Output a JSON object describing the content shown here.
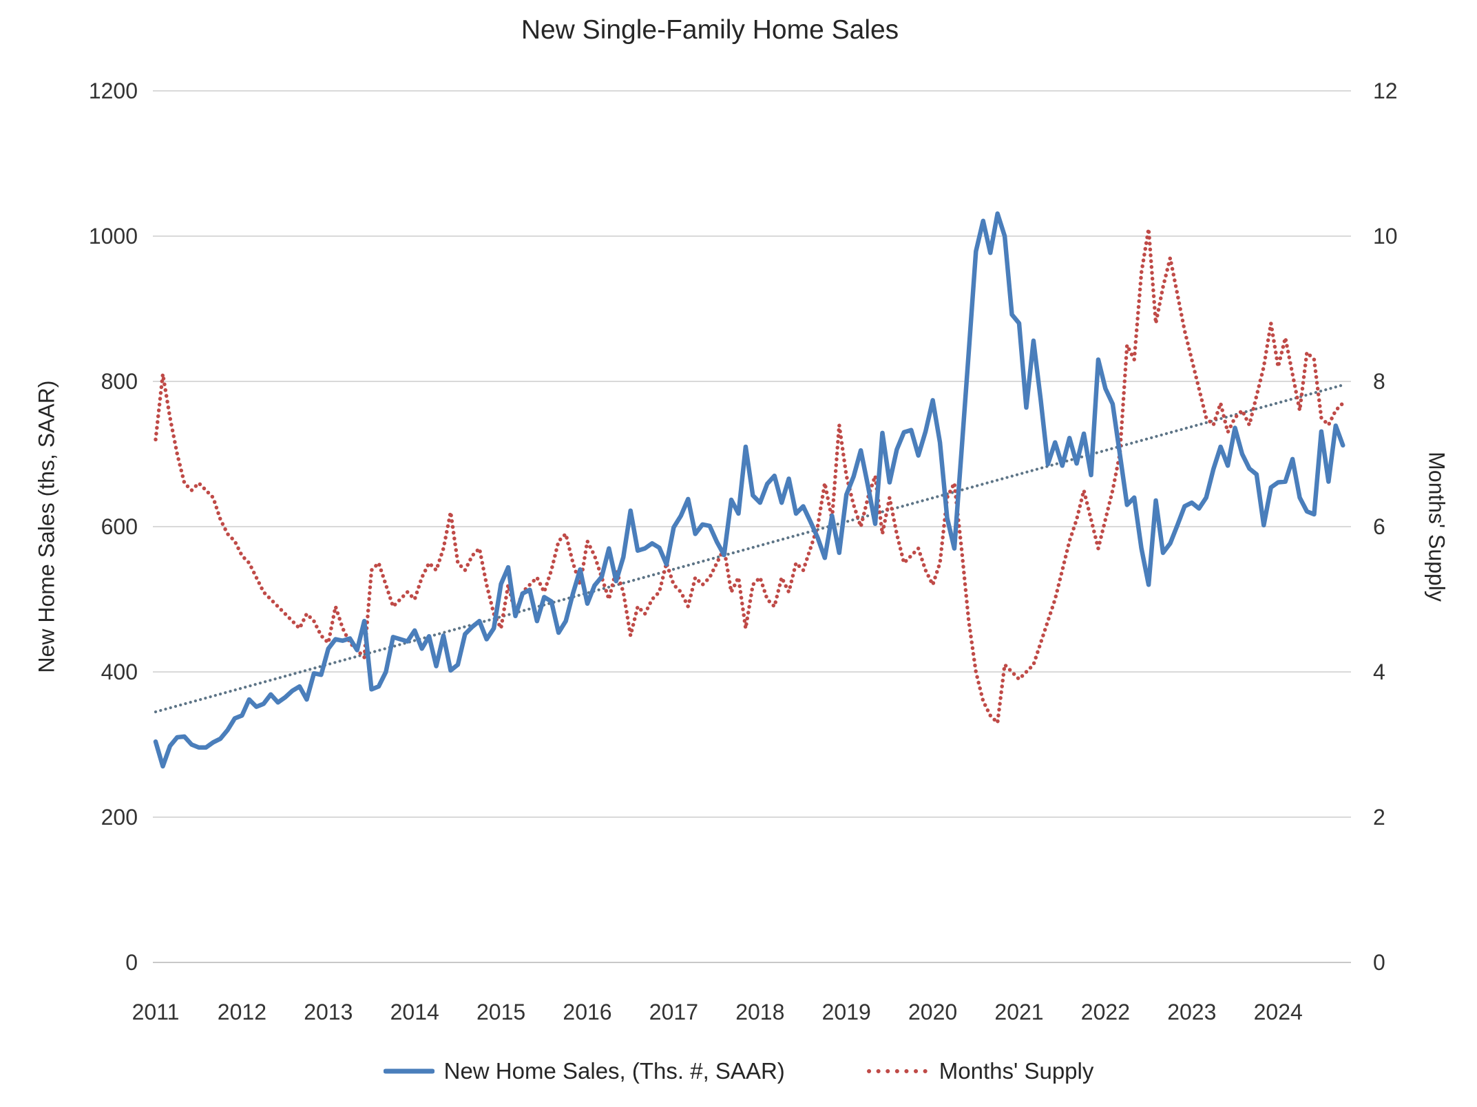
{
  "title": "New Single-Family Home Sales",
  "left_axis": {
    "title": "New Home Sales (ths, SAAR)",
    "ticks": [
      0,
      200,
      400,
      600,
      800,
      1000,
      1200
    ]
  },
  "right_axis": {
    "title": "Months' Supply",
    "ticks": [
      0,
      2,
      4,
      6,
      8,
      10,
      12
    ]
  },
  "x_axis": {
    "years": [
      "2011",
      "2012",
      "2013",
      "2014",
      "2015",
      "2016",
      "2017",
      "2018",
      "2019",
      "2020",
      "2021",
      "2022",
      "2023",
      "2024"
    ]
  },
  "legend": {
    "sales_label": "New Home Sales, (Ths. #, SAAR)",
    "supply_label": "Months' Supply"
  },
  "colors": {
    "sales_line": "#4a7ebb",
    "supply_dots": "#bf4a47",
    "trend_dots": "#5d7486",
    "gridline": "#d9d9d9",
    "axis_line": "#c8c8c8",
    "text": "#262626"
  },
  "chart_data": {
    "type": "line",
    "title": "New Single-Family Home Sales",
    "x_start": "2011-01",
    "x_end": "2024-10",
    "frequency": "monthly",
    "left_ylim": [
      0,
      1200
    ],
    "right_ylim": [
      0,
      12
    ],
    "gridlines": true,
    "legend_position": "bottom",
    "series": [
      {
        "name": "New Home Sales, (Ths. #, SAAR)",
        "axis": "left",
        "style": "solid",
        "color": "#4a7ebb",
        "values": [
          304,
          270,
          298,
          310,
          311,
          300,
          296,
          296,
          303,
          308,
          320,
          336,
          340,
          362,
          352,
          356,
          369,
          358,
          365,
          374,
          380,
          362,
          398,
          396,
          432,
          445,
          443,
          446,
          430,
          470,
          376,
          380,
          400,
          448,
          445,
          442,
          457,
          432,
          449,
          408,
          450,
          402,
          410,
          452,
          462,
          470,
          445,
          460,
          521,
          544,
          477,
          508,
          513,
          470,
          503,
          497,
          454,
          470,
          508,
          541,
          494,
          519,
          531,
          570,
          525,
          558,
          622,
          567,
          570,
          577,
          571,
          548,
          599,
          615,
          638,
          590,
          603,
          601,
          579,
          561,
          637,
          618,
          710,
          643,
          633,
          659,
          670,
          633,
          666,
          618,
          628,
          607,
          585,
          557,
          615,
          564,
          644,
          669,
          705,
          656,
          604,
          729,
          661,
          706,
          730,
          733,
          698,
          731,
          774,
          716,
          612,
          570,
          704,
          840,
          979,
          1021,
          977,
          1031,
          1000,
          892,
          880,
          764,
          856,
          775,
          686,
          716,
          684,
          722,
          687,
          728,
          671,
          830,
          790,
          769,
          700,
          630,
          640,
          570,
          520,
          636,
          564,
          577,
          602,
          628,
          633,
          625,
          640,
          679,
          710,
          684,
          736,
          700,
          680,
          672,
          602,
          654,
          661,
          662,
          693,
          640,
          621,
          617,
          731,
          662,
          739,
          712
        ]
      },
      {
        "name": "Months' Supply",
        "axis": "right",
        "style": "dotted",
        "color": "#bf4a47",
        "values": [
          7.2,
          8.1,
          7.5,
          7.0,
          6.6,
          6.5,
          6.6,
          6.5,
          6.4,
          6.1,
          5.9,
          5.8,
          5.6,
          5.5,
          5.3,
          5.1,
          5.0,
          4.9,
          4.8,
          4.7,
          4.6,
          4.8,
          4.7,
          4.5,
          4.4,
          4.9,
          4.6,
          4.4,
          4.3,
          4.2,
          5.4,
          5.5,
          5.2,
          4.9,
          5.0,
          5.1,
          5.0,
          5.3,
          5.5,
          5.4,
          5.7,
          6.2,
          5.5,
          5.4,
          5.6,
          5.7,
          5.2,
          4.8,
          4.6,
          5.2,
          4.8,
          5.1,
          5.2,
          5.3,
          5.1,
          5.4,
          5.8,
          5.9,
          5.5,
          5.2,
          5.8,
          5.6,
          5.3,
          5.0,
          5.4,
          5.1,
          4.5,
          4.9,
          4.8,
          5.0,
          5.1,
          5.5,
          5.2,
          5.1,
          4.9,
          5.3,
          5.2,
          5.3,
          5.5,
          5.7,
          5.1,
          5.3,
          4.6,
          5.2,
          5.3,
          5.0,
          4.9,
          5.3,
          5.1,
          5.5,
          5.4,
          5.7,
          6.0,
          6.6,
          6.1,
          7.4,
          6.7,
          6.3,
          6.0,
          6.4,
          6.7,
          5.9,
          6.4,
          5.9,
          5.5,
          5.6,
          5.7,
          5.4,
          5.2,
          5.5,
          6.4,
          6.6,
          5.7,
          4.7,
          4.0,
          3.6,
          3.4,
          3.3,
          4.1,
          4.0,
          3.9,
          4.0,
          4.1,
          4.4,
          4.7,
          5.0,
          5.4,
          5.8,
          6.1,
          6.5,
          6.1,
          5.7,
          6.1,
          6.5,
          7.0,
          8.5,
          8.3,
          9.5,
          10.1,
          8.8,
          9.3,
          9.7,
          9.2,
          8.7,
          8.3,
          7.9,
          7.5,
          7.4,
          7.7,
          7.3,
          7.5,
          7.6,
          7.4,
          7.8,
          8.2,
          8.8,
          8.2,
          8.6,
          8.1,
          7.6,
          8.4,
          8.3,
          7.5,
          7.4,
          7.6,
          7.7
        ]
      },
      {
        "name": "Linear trend of New Home Sales",
        "axis": "left",
        "style": "dotted",
        "color": "#5d7486",
        "endpoints": [
          345,
          795
        ]
      }
    ]
  }
}
